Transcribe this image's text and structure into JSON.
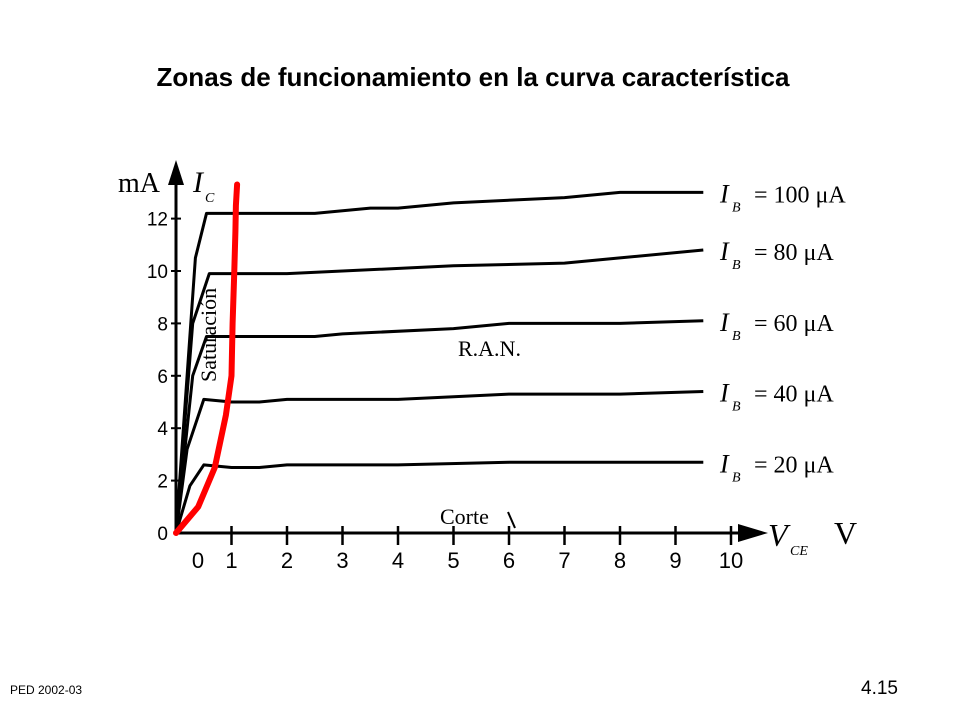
{
  "slide": {
    "title": "Zonas de funcionamiento en la curva característica",
    "footer_left": "PED   2002-03",
    "footer_right": "4.15"
  },
  "chart_data": {
    "type": "line",
    "xlabel": "V",
    "xlabel_sub": "CE",
    "x_unit": "V",
    "ylabel": "I",
    "ylabel_sub": "C",
    "y_unit": "mA",
    "xlim": [
      0,
      10
    ],
    "ylim": [
      0,
      13
    ],
    "x_ticks": [
      "0",
      "1",
      "2",
      "3",
      "4",
      "5",
      "6",
      "7",
      "8",
      "9",
      "10"
    ],
    "y_ticks": [
      "0",
      "2",
      "4",
      "6",
      "8",
      "10",
      "12"
    ],
    "series": [
      {
        "name": "IB = 20 μA",
        "label_main": "I",
        "label_sub": "B",
        "label_value": "= 20  μA",
        "x": [
          0,
          0.25,
          0.5,
          1.0,
          1.5,
          2.0,
          4.0,
          6.0,
          8.0,
          9.5
        ],
        "y": [
          0,
          1.8,
          2.6,
          2.5,
          2.5,
          2.6,
          2.6,
          2.7,
          2.7,
          2.7
        ]
      },
      {
        "name": "IB = 40 μA",
        "label_main": "I",
        "label_sub": "B",
        "label_value": "= 40  μA",
        "x": [
          0,
          0.2,
          0.5,
          1.0,
          1.5,
          2.0,
          4.0,
          6.0,
          8.0,
          9.5
        ],
        "y": [
          0,
          3.2,
          5.1,
          5.0,
          5.0,
          5.1,
          5.1,
          5.3,
          5.3,
          5.4
        ]
      },
      {
        "name": "IB = 60 μA",
        "label_main": "I",
        "label_sub": "B",
        "label_value": "= 60  μA",
        "x": [
          0,
          0.3,
          0.55,
          1.0,
          2.5,
          3.0,
          5.0,
          6.0,
          8.0,
          9.5
        ],
        "y": [
          0,
          6.0,
          7.5,
          7.5,
          7.5,
          7.6,
          7.8,
          8.0,
          8.0,
          8.1
        ]
      },
      {
        "name": "IB = 80 μA",
        "label_main": "I",
        "label_sub": "B",
        "label_value": "= 80  μA",
        "x": [
          0,
          0.3,
          0.6,
          1.0,
          2.0,
          3.0,
          5.0,
          7.0,
          8.0,
          9.5
        ],
        "y": [
          0,
          8.0,
          9.9,
          9.9,
          9.9,
          10.0,
          10.2,
          10.3,
          10.5,
          10.8
        ]
      },
      {
        "name": "IB = 100 μA",
        "label_main": "I",
        "label_sub": "B",
        "label_value": "= 100  μA",
        "x": [
          0,
          0.35,
          0.55,
          1.0,
          2.5,
          3.5,
          4.0,
          5.0,
          7.0,
          8.0,
          9.5
        ],
        "y": [
          0,
          10.5,
          12.2,
          12.2,
          12.2,
          12.4,
          12.4,
          12.6,
          12.8,
          13.0,
          13.0
        ]
      }
    ],
    "saturation_curve": {
      "x": [
        0,
        0.4,
        0.7,
        0.9,
        1.0,
        1.02,
        1.05,
        1.07,
        1.08,
        1.1
      ],
      "y": [
        0,
        1.0,
        2.5,
        4.5,
        6.0,
        8.0,
        10.0,
        11.5,
        12.5,
        13.3
      ],
      "color": "#ff0000"
    },
    "annotations": {
      "saturation": "Saturación",
      "ran": "R.A.N.",
      "corte": "Corte"
    },
    "grid": false,
    "legend": "right"
  }
}
